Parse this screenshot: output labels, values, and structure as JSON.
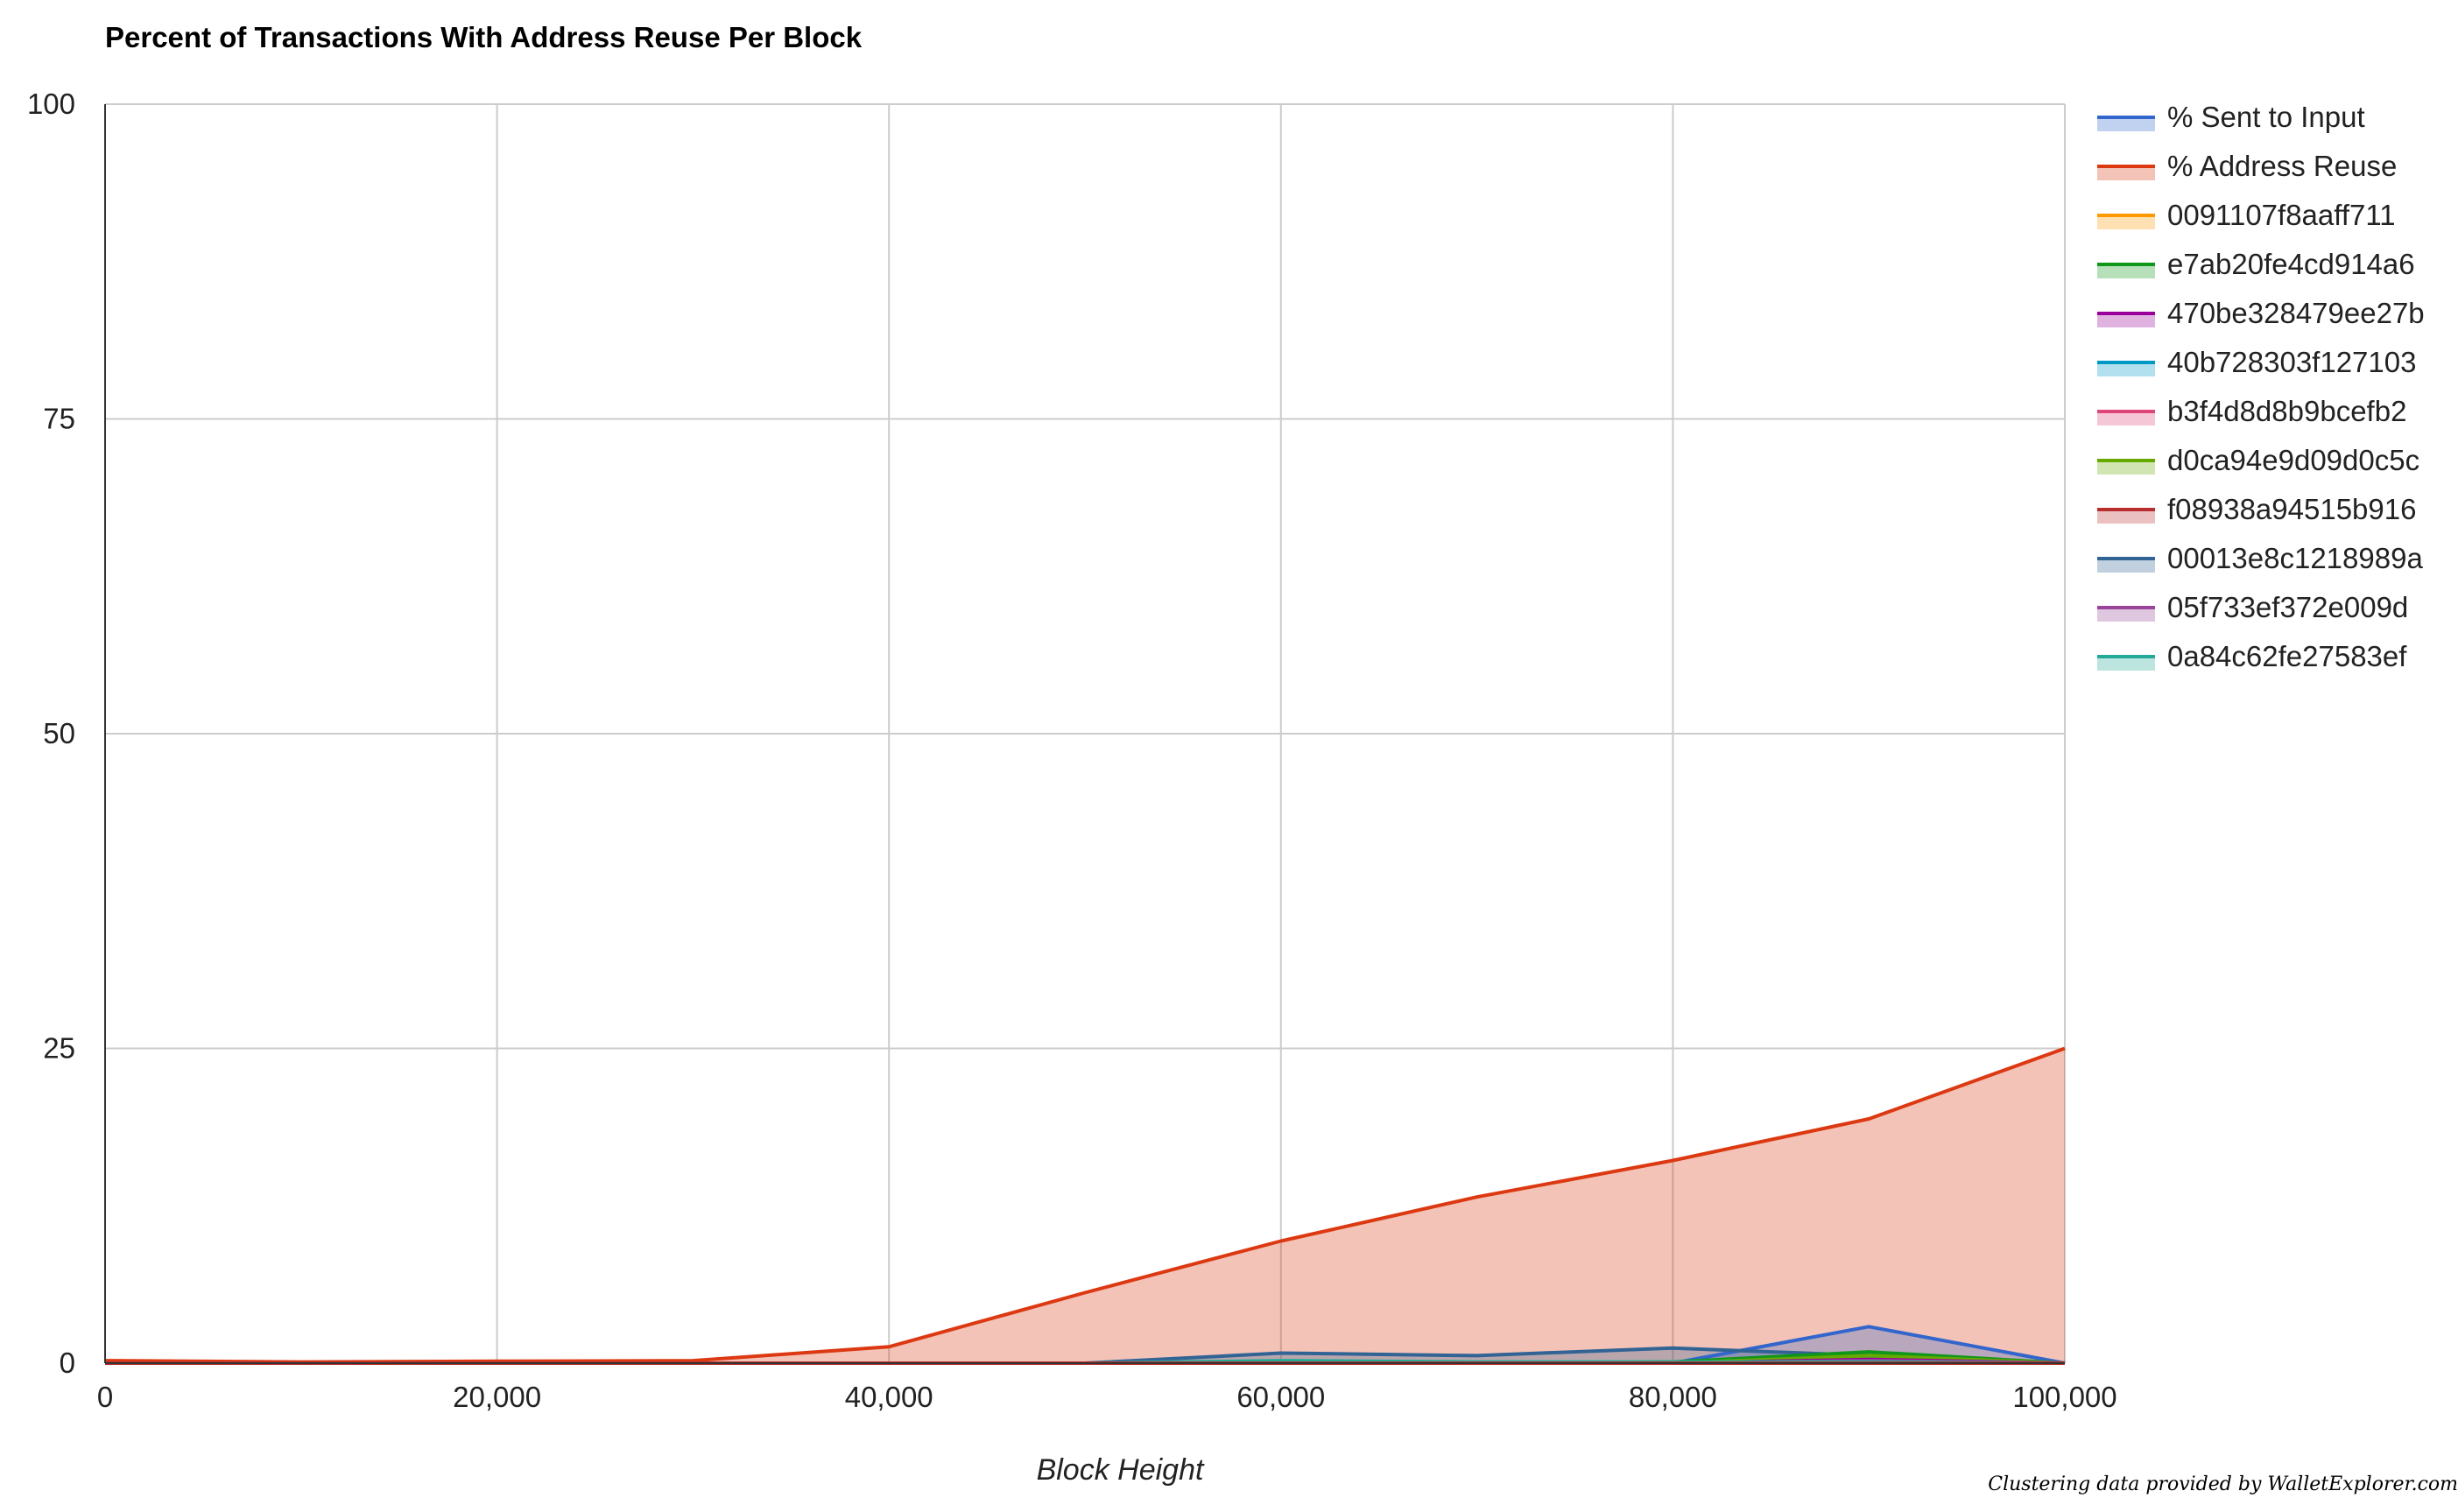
{
  "chart_data": {
    "type": "area",
    "title": "Percent of Transactions With Address Reuse Per Block",
    "xlabel": "Block Height",
    "ylabel": "",
    "xlim": [
      0,
      100000
    ],
    "ylim": [
      0,
      100
    ],
    "x_ticks": [
      0,
      20000,
      40000,
      60000,
      80000,
      100000
    ],
    "x_tick_labels": [
      "0",
      "20,000",
      "40,000",
      "60,000",
      "80,000",
      "100,000"
    ],
    "y_ticks": [
      0,
      25,
      50,
      75,
      100
    ],
    "y_tick_labels": [
      "0",
      "25",
      "50",
      "75",
      "100"
    ],
    "grid": true,
    "legend_position": "right",
    "x": [
      0,
      10000,
      20000,
      30000,
      40000,
      50000,
      60000,
      70000,
      80000,
      90000,
      100000
    ],
    "series": [
      {
        "name": "% Sent to Input",
        "color": "#3366cc",
        "values": [
          0,
          0,
          0,
          0,
          0,
          0,
          0,
          0,
          0,
          2.9,
          0
        ]
      },
      {
        "name": "% Address Reuse",
        "color": "#dc3912",
        "values": [
          0.2,
          0.1,
          0.15,
          0.2,
          1.3,
          5.6,
          9.7,
          13.2,
          16.1,
          19.4,
          25.0
        ]
      },
      {
        "name": "0091107f8aaff711",
        "color": "#ff9900",
        "values": [
          0,
          0,
          0,
          0,
          0,
          0,
          0,
          0,
          0,
          0,
          0
        ]
      },
      {
        "name": "e7ab20fe4cd914a6",
        "color": "#109618",
        "values": [
          0,
          0,
          0,
          0,
          0,
          0,
          0,
          0,
          0.1,
          0.9,
          0
        ]
      },
      {
        "name": "470be328479ee27b",
        "color": "#990099",
        "values": [
          0,
          0,
          0,
          0,
          0,
          0,
          0,
          0,
          0,
          0.3,
          0
        ]
      },
      {
        "name": "40b728303f127103",
        "color": "#0099c6",
        "values": [
          0,
          0,
          0,
          0,
          0,
          0,
          0,
          0,
          0,
          0,
          0
        ]
      },
      {
        "name": "b3f4d8d8b9bcefb2",
        "color": "#dd4477",
        "values": [
          0,
          0,
          0,
          0,
          0,
          0,
          0,
          0,
          0,
          0,
          0
        ]
      },
      {
        "name": "d0ca94e9d09d0c5c",
        "color": "#66aa00",
        "values": [
          0,
          0,
          0,
          0,
          0,
          0,
          0,
          0,
          0,
          0.6,
          0
        ]
      },
      {
        "name": "f08938a94515b916",
        "color": "#b82e2e",
        "values": [
          0,
          0,
          0,
          0,
          0,
          0,
          0,
          0,
          0,
          0,
          0
        ]
      },
      {
        "name": "00013e8c1218989a",
        "color": "#316395",
        "values": [
          0,
          0,
          0,
          0,
          0,
          0,
          0.8,
          0.6,
          1.2,
          0.6,
          0
        ]
      },
      {
        "name": "05f733ef372e009d",
        "color": "#994499",
        "values": [
          0,
          0,
          0,
          0,
          0,
          0,
          0,
          0,
          0,
          0.2,
          0
        ]
      },
      {
        "name": "0a84c62fe27583ef",
        "color": "#22aa99",
        "values": [
          0,
          0,
          0,
          0,
          0,
          0,
          0.2,
          0.1,
          0.1,
          0.1,
          0
        ]
      }
    ]
  },
  "attribution": "Clustering data provided by WalletExplorer.com"
}
